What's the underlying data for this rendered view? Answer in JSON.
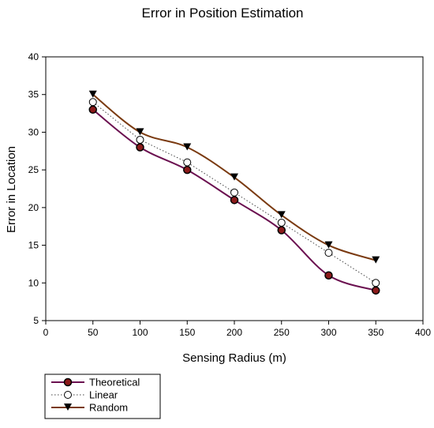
{
  "chart_data": {
    "type": "line",
    "title": "Error in Position Estimation",
    "xlabel": "Sensing Radius (m)",
    "ylabel": "Error in Location",
    "xlim": [
      0,
      400
    ],
    "ylim": [
      5,
      40
    ],
    "xticks": [
      0,
      50,
      100,
      150,
      200,
      250,
      300,
      350,
      400
    ],
    "yticks": [
      5,
      10,
      15,
      20,
      25,
      30,
      35,
      40
    ],
    "grid": false,
    "legend_position": "bottom-left, below plot",
    "x": [
      50,
      100,
      150,
      200,
      250,
      300,
      350
    ],
    "series": [
      {
        "name": "Theoretical",
        "values": [
          33,
          28,
          25,
          21,
          17,
          11,
          9
        ],
        "color": "#6b1050",
        "marker": "filled-circle",
        "line": "solid-smooth"
      },
      {
        "name": "Linear",
        "values": [
          34,
          29,
          26,
          22,
          18,
          14,
          10
        ],
        "color": "#555555",
        "marker": "open-circle",
        "line": "dotted"
      },
      {
        "name": "Random",
        "values": [
          35,
          30,
          28,
          24,
          19,
          15,
          13
        ],
        "color": "#7a3a10",
        "marker": "triangle-down",
        "line": "solid-smooth"
      }
    ]
  }
}
